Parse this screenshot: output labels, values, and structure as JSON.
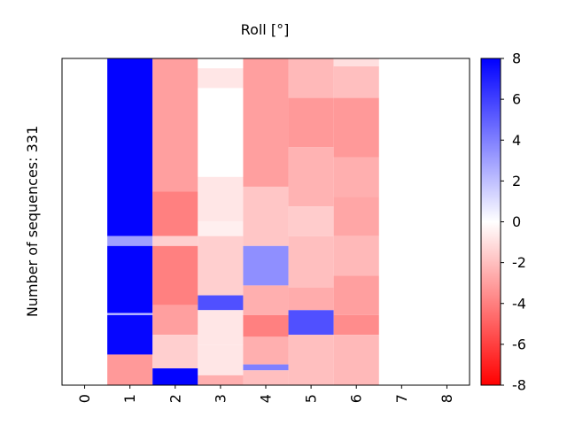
{
  "chart_data": {
    "type": "heatmap",
    "title": "Roll [°]",
    "ylabel": "Number of sequences: 331",
    "xlabel": "",
    "x_ticks": [
      "0",
      "1",
      "2",
      "3",
      "4",
      "5",
      "6",
      "7",
      "8"
    ],
    "x_range": [
      0,
      9
    ],
    "columns": [
      1,
      2,
      3,
      4,
      5,
      6
    ],
    "n_sequences": 331,
    "colorbar": {
      "vmin": -8,
      "vmax": 8,
      "ticks": [
        "8",
        "6",
        "4",
        "2",
        "0",
        "-2",
        "-4",
        "-6",
        "-8"
      ],
      "low_color": "#ff0000",
      "mid_color": "#ffffff",
      "high_color": "#0000ff"
    },
    "column_bands": [
      [
        [
          0,
          180,
          7.9
        ],
        [
          180,
          190,
          3.0
        ],
        [
          190,
          258,
          7.9
        ],
        [
          258,
          260,
          2.0
        ],
        [
          260,
          300,
          7.8
        ],
        [
          300,
          331,
          -3.2
        ]
      ],
      [
        [
          0,
          135,
          -3.0
        ],
        [
          135,
          180,
          -4.0
        ],
        [
          180,
          190,
          -1.5
        ],
        [
          190,
          250,
          -4.0
        ],
        [
          250,
          280,
          -3.0
        ],
        [
          280,
          314,
          -1.5
        ],
        [
          314,
          331,
          7.9
        ]
      ],
      [
        [
          0,
          10,
          0.0
        ],
        [
          10,
          30,
          -0.8
        ],
        [
          30,
          120,
          0.0
        ],
        [
          120,
          165,
          -0.8
        ],
        [
          165,
          180,
          -0.5
        ],
        [
          180,
          240,
          -1.5
        ],
        [
          240,
          255,
          5.5
        ],
        [
          255,
          290,
          -0.8
        ],
        [
          290,
          321,
          -0.8
        ],
        [
          321,
          331,
          -2.5
        ]
      ],
      [
        [
          0,
          130,
          -3.0
        ],
        [
          130,
          190,
          -1.8
        ],
        [
          190,
          230,
          3.5
        ],
        [
          230,
          260,
          -2.5
        ],
        [
          260,
          282,
          -4.0
        ],
        [
          282,
          310,
          -2.5
        ],
        [
          310,
          316,
          4.0
        ],
        [
          316,
          331,
          -2.0
        ]
      ],
      [
        [
          0,
          40,
          -2.2
        ],
        [
          40,
          90,
          -3.2
        ],
        [
          90,
          150,
          -2.4
        ],
        [
          150,
          180,
          -1.6
        ],
        [
          180,
          232,
          -2.0
        ],
        [
          232,
          255,
          -2.6
        ],
        [
          255,
          280,
          5.5
        ],
        [
          280,
          331,
          -2.0
        ]
      ],
      [
        [
          0,
          8,
          -1.0
        ],
        [
          8,
          40,
          -2.0
        ],
        [
          40,
          100,
          -3.2
        ],
        [
          100,
          140,
          -2.5
        ],
        [
          140,
          180,
          -2.8
        ],
        [
          180,
          220,
          -2.2
        ],
        [
          220,
          260,
          -3.0
        ],
        [
          260,
          280,
          -3.6
        ],
        [
          280,
          331,
          -2.2
        ]
      ]
    ]
  }
}
